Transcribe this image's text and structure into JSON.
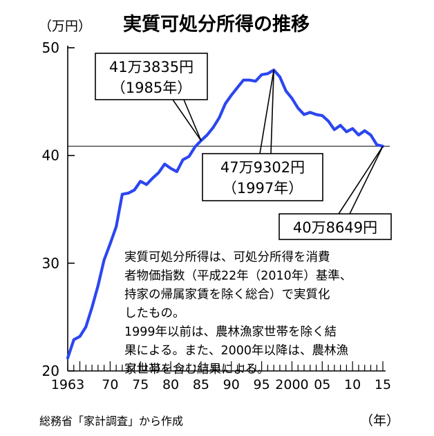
{
  "chart_data": {
    "type": "line",
    "title": "実質可処分所得の推移",
    "unit_label": "（万円）",
    "x_unit_label": "（年）",
    "source": "総務省「家計調査」から作成",
    "ylim": [
      20,
      50
    ],
    "xlim": [
      1963,
      2015
    ],
    "y_ticks": [
      "20",
      "30",
      "40",
      "50"
    ],
    "x_ticks": [
      {
        "x": 1963,
        "label": "1963"
      },
      {
        "x": 1970,
        "label": "70"
      },
      {
        "x": 1975,
        "label": "75"
      },
      {
        "x": 1980,
        "label": "80"
      },
      {
        "x": 1985,
        "label": "85"
      },
      {
        "x": 1990,
        "label": "90"
      },
      {
        "x": 1995,
        "label": "95"
      },
      {
        "x": 2000,
        "label": "2000"
      },
      {
        "x": 2005,
        "label": "05"
      },
      {
        "x": 2010,
        "label": "10"
      },
      {
        "x": 2015,
        "label": "15"
      }
    ],
    "reference_y": 40.86,
    "series": [
      {
        "color": "#2b46f0",
        "x": [
          1963,
          1964,
          1965,
          1966,
          1967,
          1968,
          1969,
          1970,
          1971,
          1972,
          1973,
          1974,
          1975,
          1976,
          1977,
          1978,
          1979,
          1980,
          1981,
          1982,
          1983,
          1984,
          1985,
          1986,
          1987,
          1988,
          1989,
          1990,
          1991,
          1992,
          1993,
          1994,
          1995,
          1996,
          1997,
          1998,
          1999,
          2000,
          2001,
          2002,
          2003,
          2004,
          2005,
          2006,
          2007,
          2008,
          2009,
          2010,
          2011,
          2012,
          2013,
          2014,
          2015
        ],
        "y": [
          21.2,
          22.9,
          23.2,
          24.1,
          25.9,
          27.9,
          30.3,
          31.8,
          33.4,
          36.4,
          36.5,
          36.8,
          37.6,
          37.3,
          37.9,
          38.4,
          39.2,
          38.8,
          38.5,
          39.6,
          39.9,
          40.8,
          41.38,
          41.9,
          42.6,
          43.5,
          44.8,
          45.6,
          46.3,
          47.0,
          47.0,
          46.9,
          47.5,
          47.6,
          47.93,
          47.3,
          46.0,
          45.3,
          44.4,
          43.8,
          44.0,
          43.8,
          43.7,
          43.2,
          42.4,
          42.8,
          42.2,
          42.5,
          41.9,
          42.3,
          41.9,
          41.0,
          40.86
        ]
      }
    ],
    "annotations": [
      {
        "lines": [
          "41万3835円",
          "（1985年）"
        ],
        "x": 1985,
        "y": 41.38
      },
      {
        "lines": [
          "47万9302円",
          "（1997年）"
        ],
        "x": 1997,
        "y": 47.93
      },
      {
        "lines": [
          "40万8649円"
        ],
        "x": 2015,
        "y": 40.86
      }
    ],
    "note": [
      "実質可処分所得は、可処分所得を消費",
      "者物価指数（平成22年（2010年）基準、",
      "持家の帰属家賃を除く総合）で実質化",
      "したもの。",
      "1999年以前は、農林漁家世帯を除く結",
      "果による。また、2000年以降は、農林漁",
      "家世帯を含む結果による。"
    ]
  }
}
